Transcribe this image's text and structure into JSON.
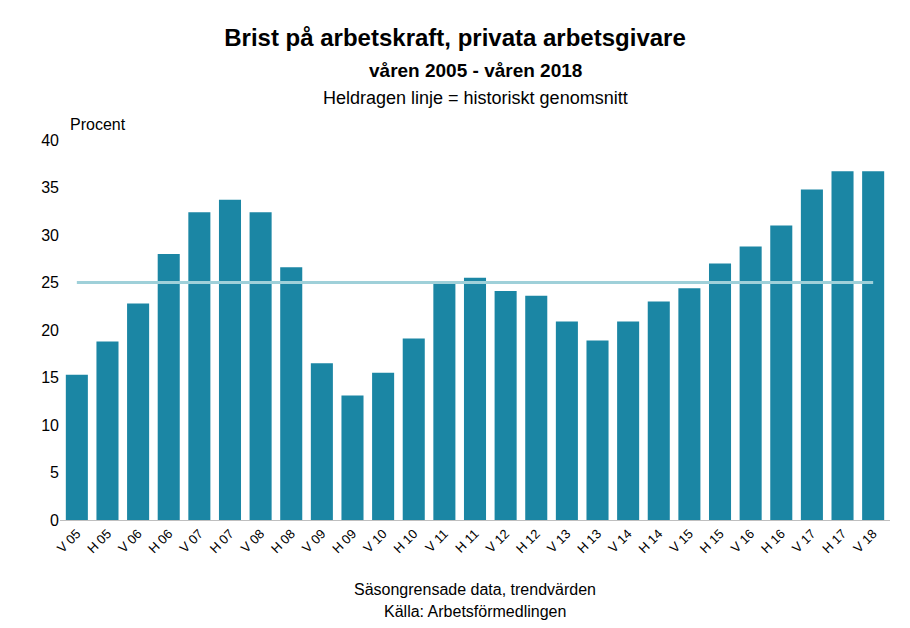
{
  "chart_data": {
    "type": "bar",
    "title": "Brist på arbetskraft, privata arbetsgivare",
    "subtitle": "våren 2005 - våren 2018",
    "annotations": [
      "Heldragen linje = historiskt genomsnitt"
    ],
    "y_label": "Procent",
    "x_label": "Säsongrensade data, trendvärden",
    "source": "Källa: Arbetsförmedlingen",
    "categories": [
      "V 05",
      "H 05",
      "V 06",
      "H 06",
      "V 07",
      "H 07",
      "V 08",
      "H 08",
      "V 09",
      "H 09",
      "V 10",
      "H 10",
      "V 11",
      "H 11",
      "V 12",
      "H 12",
      "V 13",
      "H 13",
      "V 14",
      "H 14",
      "V 15",
      "H 15",
      "V 16",
      "H 16",
      "V 17",
      "H 17",
      "V 18"
    ],
    "values": [
      15.3,
      18.8,
      22.8,
      28.0,
      32.4,
      33.7,
      32.4,
      26.6,
      16.5,
      13.1,
      15.5,
      19.1,
      24.9,
      25.5,
      24.1,
      23.6,
      20.9,
      18.9,
      20.9,
      23.0,
      24.4,
      27.0,
      28.8,
      31.0,
      34.8,
      36.7,
      36.7
    ],
    "color": "#1b86a4",
    "average": 25,
    "average_color": "#9fd0d9",
    "ylim": [
      0,
      40
    ],
    "yticks": [
      0,
      5,
      10,
      15,
      20,
      25,
      30,
      35,
      40
    ],
    "grid": false
  }
}
